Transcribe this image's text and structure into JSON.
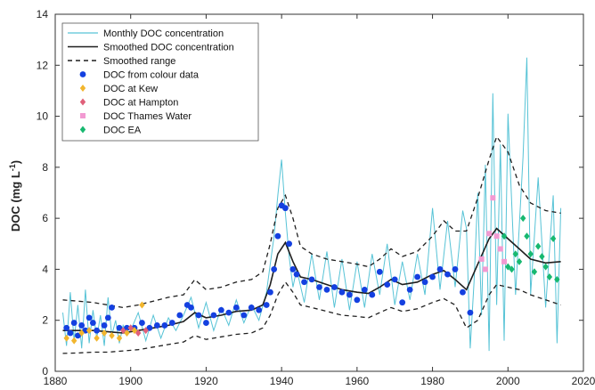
{
  "chart_data": {
    "type": "line",
    "title": "",
    "xlabel": "",
    "ylabel": "DOC (mg L",
    "ylabel_sup": "-1",
    "ylabel_close": ")",
    "xlim": [
      1880,
      2020
    ],
    "ylim": [
      0,
      14
    ],
    "xticks": [
      1880,
      1900,
      1920,
      1940,
      1960,
      1980,
      2000,
      2020
    ],
    "yticks": [
      0,
      2,
      4,
      6,
      8,
      10,
      12,
      14
    ],
    "grid": false,
    "legend_position": "top-left",
    "colors": {
      "monthly": "#57c3d6",
      "smoothed": "#1f1f1f",
      "range": "#1f1f1f",
      "colour_data": "#1440e0",
      "kew": "#f2b62e",
      "hampton": "#e0607a",
      "thames": "#f29ad2",
      "ea": "#17b870"
    },
    "series": [
      {
        "name": "Monthly DOC concentration",
        "style": "line",
        "x": [
          1882,
          1883,
          1884,
          1885,
          1886,
          1887,
          1888,
          1889,
          1890,
          1891,
          1892,
          1893,
          1894,
          1895,
          1896,
          1897,
          1898,
          1899,
          1900,
          1902,
          1904,
          1906,
          1908,
          1910,
          1912,
          1914,
          1916,
          1918,
          1920,
          1922,
          1924,
          1926,
          1928,
          1930,
          1932,
          1934,
          1936,
          1937,
          1938,
          1939,
          1940,
          1941,
          1942,
          1943,
          1944,
          1946,
          1948,
          1950,
          1952,
          1954,
          1956,
          1958,
          1960,
          1962,
          1964,
          1966,
          1968,
          1970,
          1972,
          1974,
          1976,
          1978,
          1980,
          1982,
          1984,
          1986,
          1988,
          1989,
          1990,
          1991,
          1992,
          1993,
          1994,
          1995,
          1996,
          1997,
          1998,
          1999,
          2000,
          2002,
          2004,
          2005,
          2006,
          2008,
          2010,
          2012,
          2013,
          2014
        ],
        "y": [
          2.3,
          1.0,
          3.1,
          1.2,
          2.6,
          0.9,
          3.2,
          1.1,
          2.4,
          1.3,
          2.2,
          1.0,
          2.9,
          1.4,
          2.0,
          1.1,
          1.8,
          1.5,
          1.6,
          2.3,
          1.2,
          2.2,
          1.3,
          2.1,
          1.6,
          2.2,
          2.9,
          1.7,
          2.7,
          1.6,
          2.5,
          1.8,
          2.8,
          1.9,
          2.6,
          2.0,
          3.1,
          4.2,
          5.3,
          6.9,
          8.3,
          6.2,
          4.5,
          3.3,
          4.0,
          2.7,
          4.6,
          2.8,
          4.7,
          2.5,
          4.4,
          2.4,
          4.3,
          2.5,
          4.6,
          3.0,
          5.0,
          2.6,
          4.3,
          2.8,
          4.6,
          3.0,
          6.4,
          3.2,
          5.9,
          3.3,
          6.3,
          5.6,
          0.9,
          3.5,
          7.0,
          2.2,
          8.1,
          0.8,
          10.9,
          2.6,
          8.9,
          1.2,
          10.1,
          3.0,
          8.4,
          12.3,
          3.0,
          7.6,
          2.5,
          6.9,
          1.1,
          6.4
        ]
      },
      {
        "name": "Smoothed DOC concentration",
        "style": "line",
        "x": [
          1882,
          1886,
          1890,
          1894,
          1898,
          1902,
          1906,
          1910,
          1914,
          1917,
          1920,
          1924,
          1928,
          1932,
          1935,
          1937,
          1939,
          1941,
          1943,
          1945,
          1948,
          1952,
          1956,
          1960,
          1963,
          1966,
          1969,
          1972,
          1976,
          1980,
          1983,
          1986,
          1989,
          1992,
          1995,
          1997,
          2000,
          2003,
          2006,
          2010,
          2014
        ],
        "y": [
          1.6,
          1.6,
          1.6,
          1.55,
          1.5,
          1.6,
          1.7,
          1.8,
          1.95,
          2.3,
          2.1,
          2.2,
          2.35,
          2.4,
          2.6,
          3.4,
          4.6,
          5.05,
          4.3,
          3.7,
          3.6,
          3.4,
          3.2,
          3.1,
          3.05,
          3.3,
          3.6,
          3.4,
          3.5,
          3.8,
          3.95,
          3.6,
          3.2,
          4.2,
          5.2,
          5.6,
          5.2,
          4.8,
          4.4,
          4.25,
          4.3
        ]
      },
      {
        "name": "Smoothed range",
        "style": "dashed",
        "x": [
          1882,
          1886,
          1890,
          1894,
          1898,
          1902,
          1906,
          1910,
          1914,
          1917,
          1920,
          1924,
          1928,
          1932,
          1935,
          1937,
          1939,
          1941,
          1943,
          1945,
          1948,
          1952,
          1956,
          1960,
          1963,
          1966,
          1969,
          1972,
          1976,
          1980,
          1983,
          1986,
          1989,
          1992,
          1995,
          1997,
          2000,
          2003,
          2006,
          2010,
          2014
        ],
        "y": [
          2.8,
          2.75,
          2.7,
          2.6,
          2.5,
          2.6,
          2.75,
          2.9,
          3.0,
          3.6,
          3.2,
          3.3,
          3.5,
          3.6,
          3.9,
          5.0,
          6.4,
          6.9,
          6.0,
          4.9,
          4.6,
          4.4,
          4.3,
          4.2,
          4.1,
          4.4,
          4.8,
          4.5,
          4.7,
          5.3,
          5.9,
          5.5,
          5.5,
          6.8,
          8.3,
          9.2,
          8.6,
          7.3,
          6.6,
          6.3,
          6.2
        ]
      },
      {
        "name": "",
        "style": "dashed",
        "x": [
          1882,
          1886,
          1890,
          1894,
          1898,
          1902,
          1906,
          1910,
          1914,
          1917,
          1920,
          1924,
          1928,
          1932,
          1935,
          1937,
          1939,
          1941,
          1943,
          1945,
          1948,
          1952,
          1956,
          1960,
          1963,
          1966,
          1969,
          1972,
          1976,
          1980,
          1983,
          1986,
          1989,
          1992,
          1995,
          1997,
          2000,
          2003,
          2006,
          2010,
          2014
        ],
        "y": [
          0.7,
          0.72,
          0.75,
          0.75,
          0.8,
          0.85,
          0.95,
          1.05,
          1.15,
          1.4,
          1.25,
          1.35,
          1.45,
          1.5,
          1.7,
          2.2,
          3.0,
          3.5,
          3.1,
          2.6,
          2.5,
          2.35,
          2.2,
          2.15,
          2.1,
          2.3,
          2.5,
          2.35,
          2.45,
          2.7,
          2.85,
          2.6,
          1.7,
          2.0,
          3.0,
          3.4,
          3.3,
          3.2,
          3.0,
          2.8,
          2.6
        ]
      },
      {
        "name": "DOC from colour data",
        "style": "points",
        "marker": "circle",
        "x": [
          1883,
          1884,
          1885,
          1886,
          1887,
          1888,
          1889,
          1890,
          1891,
          1893,
          1894,
          1895,
          1897,
          1899,
          1901,
          1903,
          1905,
          1907,
          1909,
          1911,
          1913,
          1915,
          1916,
          1918,
          1920,
          1922,
          1924,
          1926,
          1928,
          1930,
          1932,
          1934,
          1936,
          1937,
          1938,
          1939,
          1940,
          1941,
          1942,
          1943,
          1944,
          1946,
          1948,
          1950,
          1952,
          1954,
          1956,
          1958,
          1960,
          1962,
          1964,
          1966,
          1968,
          1970,
          1972,
          1974,
          1976,
          1978,
          1980,
          1982,
          1984,
          1986,
          1988,
          1990
        ],
        "y": [
          1.7,
          1.5,
          1.9,
          1.4,
          1.8,
          1.6,
          2.1,
          1.9,
          1.6,
          1.8,
          2.1,
          2.5,
          1.7,
          1.7,
          1.7,
          1.9,
          1.7,
          1.8,
          1.8,
          1.9,
          2.2,
          2.6,
          2.5,
          2.2,
          1.9,
          2.2,
          2.4,
          2.3,
          2.5,
          2.2,
          2.5,
          2.4,
          2.6,
          3.1,
          4.0,
          5.3,
          6.5,
          6.4,
          5.0,
          4.0,
          3.8,
          3.5,
          3.6,
          3.3,
          3.2,
          3.3,
          3.1,
          3.0,
          2.8,
          3.2,
          3.0,
          3.9,
          3.4,
          3.6,
          2.7,
          3.2,
          3.7,
          3.5,
          3.7,
          4.0,
          3.8,
          4.0,
          3.1,
          2.3
        ]
      },
      {
        "name": "DOC at Kew",
        "style": "points",
        "marker": "diamond",
        "x": [
          1883,
          1885,
          1887,
          1889,
          1891,
          1893,
          1895,
          1897,
          1899,
          1901,
          1903
        ],
        "y": [
          1.3,
          1.2,
          1.5,
          1.6,
          1.3,
          1.5,
          1.4,
          1.3,
          1.5,
          1.6,
          2.6
        ]
      },
      {
        "name": "DOC at Hampton",
        "style": "points",
        "marker": "diamond",
        "x": [
          1898,
          1900,
          1902,
          1904
        ],
        "y": [
          1.6,
          1.7,
          1.5,
          1.6
        ]
      },
      {
        "name": "DOC Thames Water",
        "style": "points",
        "marker": "square",
        "x": [
          1993,
          1994,
          1995,
          1996,
          1997,
          1998,
          1999
        ],
        "y": [
          4.4,
          4.0,
          5.4,
          6.8,
          5.3,
          4.8,
          4.3
        ]
      },
      {
        "name": "DOC EA",
        "style": "points",
        "marker": "diamond",
        "x": [
          1999,
          2000,
          2001,
          2002,
          2003,
          2004,
          2005,
          2006,
          2007,
          2008,
          2009,
          2010,
          2011,
          2012,
          2013
        ],
        "y": [
          5.3,
          4.1,
          4.0,
          4.6,
          4.3,
          6.0,
          5.3,
          4.6,
          3.9,
          4.9,
          4.5,
          4.1,
          3.7,
          5.2,
          3.6
        ]
      }
    ]
  }
}
